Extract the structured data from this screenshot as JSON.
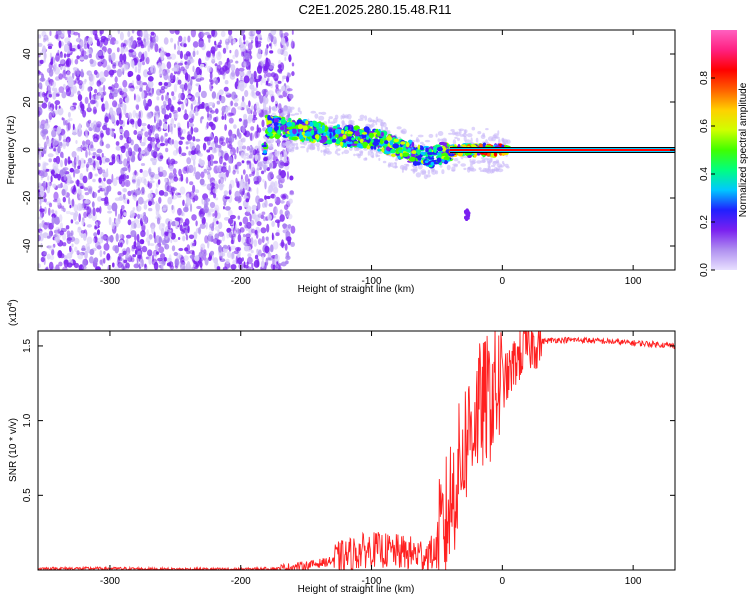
{
  "title": "C2E1.2025.280.15.48.R11",
  "chart_data": [
    {
      "type": "heatmap",
      "name": "spectrogram",
      "xlabel": "Height of straight line (km)",
      "ylabel": "Frequency (Hz)",
      "xlim": [
        -355,
        132
      ],
      "ylim": [
        -50,
        50
      ],
      "xticks": [
        -300,
        -200,
        -100,
        0,
        100
      ],
      "xtick_labels": [
        "-300",
        "-200",
        "-100",
        "0",
        "100"
      ],
      "yticks": [
        -40,
        -20,
        0,
        20,
        40
      ],
      "ytick_labels": [
        "-40",
        "-20",
        "0",
        "20",
        "40"
      ],
      "noise_region_x": [
        -355,
        -160
      ],
      "signal_trace": {
        "x": [
          -180,
          -165,
          -150,
          -135,
          -120,
          -105,
          -95,
          -85,
          -75,
          -65,
          -55,
          -45,
          -35,
          -25,
          -15,
          -5,
          5,
          132
        ],
        "y": [
          10,
          9,
          8,
          7,
          6,
          5,
          4,
          2,
          0,
          -2,
          -3,
          -1,
          0,
          0,
          0,
          0,
          0,
          0
        ]
      },
      "spur": {
        "x": -27,
        "y": -27
      },
      "colorbar": {
        "label": "Normalized spectral amplitude",
        "range": [
          0,
          1
        ],
        "ticks": [
          0.0,
          0.2,
          0.4,
          0.6,
          0.8
        ],
        "tick_labels": [
          "0.0",
          "0.2",
          "0.4",
          "0.6",
          "0.8"
        ],
        "colors": [
          "#e8e0ff",
          "#b090f0",
          "#7a20f0",
          "#2020ff",
          "#00c8ff",
          "#00ff80",
          "#40ff00",
          "#d0ff00",
          "#ffd000",
          "#ff6000",
          "#ff0000",
          "#ff2080",
          "#ff60c0"
        ]
      }
    },
    {
      "type": "line",
      "name": "snr",
      "xlabel": "Height of straight line (km)",
      "ylabel": "SNR (10 * v/v)",
      "multiplier": "(x10",
      "multiplier_exp": "4",
      "multiplier_close": ")",
      "xlim": [
        -355,
        132
      ],
      "ylim": [
        0.0,
        1.6
      ],
      "xticks": [
        -300,
        -200,
        -100,
        0,
        100
      ],
      "xtick_labels": [
        "-300",
        "-200",
        "-100",
        "0",
        "100"
      ],
      "yticks": [
        0.5,
        1.0,
        1.5
      ],
      "ytick_labels": [
        "0.5",
        "1.0",
        "1.5"
      ],
      "color": "#ff2020",
      "series": [
        {
          "name": "SNR",
          "x": [
            -355,
            -300,
            -250,
            -200,
            -170,
            -150,
            -130,
            -110,
            -100,
            -90,
            -80,
            -70,
            -60,
            -50,
            -45,
            -40,
            -35,
            -30,
            -25,
            -20,
            -15,
            -10,
            -5,
            0,
            5,
            10,
            20,
            30,
            40,
            60,
            80,
            100,
            120,
            132
          ],
          "y": [
            0.01,
            0.01,
            0.005,
            0.005,
            0.01,
            0.03,
            0.06,
            0.12,
            0.14,
            0.13,
            0.12,
            0.11,
            0.1,
            0.12,
            0.25,
            0.45,
            0.6,
            0.8,
            0.95,
            1.05,
            1.1,
            1.15,
            1.2,
            1.25,
            1.3,
            1.4,
            1.5,
            1.53,
            1.54,
            1.54,
            1.53,
            1.52,
            1.51,
            1.5
          ]
        }
      ]
    }
  ]
}
